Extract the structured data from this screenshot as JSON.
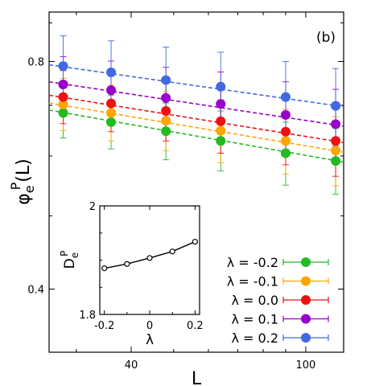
{
  "chart_data": [
    {
      "type": "scatter",
      "panel_label": "(b)",
      "xlabel": "L",
      "ylabel_main": "φ",
      "ylabel_sub": "e",
      "ylabel_sup": "P",
      "ylabel_suffix": "(L)",
      "x_scale": "log",
      "y_scale": "log",
      "xlim": [
        26,
        122
      ],
      "ylim": [
        0.33,
        0.93
      ],
      "x_ticks": [
        {
          "value": 40,
          "label": "40"
        },
        {
          "value": 100,
          "label": "100"
        }
      ],
      "y_ticks": [
        {
          "value": 0.8,
          "label": "0.8"
        },
        {
          "value": 0.4,
          "label": "0.4"
        }
      ],
      "x": [
        28,
        36,
        48,
        64,
        90,
        117
      ],
      "legend_position": "bottom-right",
      "series": [
        {
          "name": "λ = -0.2",
          "color": "#22bb22",
          "values": [
            0.684,
            0.665,
            0.647,
            0.628,
            0.605,
            0.591
          ],
          "err_plus": [
            0.055,
            0.057,
            0.058,
            0.06,
            0.06,
            0.062
          ],
          "err_minus": [
            0.05,
            0.052,
            0.054,
            0.055,
            0.056,
            0.057
          ],
          "fit": [
            0.69,
            0.589
          ]
        },
        {
          "name": "λ = -0.1",
          "color": "#ffa500",
          "values": [
            0.702,
            0.684,
            0.668,
            0.648,
            0.628,
            0.61
          ],
          "err_plus": [
            0.058,
            0.06,
            0.062,
            0.064,
            0.064,
            0.066
          ],
          "err_minus": [
            0.054,
            0.056,
            0.058,
            0.06,
            0.06,
            0.062
          ],
          "fit": [
            0.705,
            0.607
          ]
        },
        {
          "name": "λ = 0.0",
          "color": "#ee1111",
          "values": [
            0.718,
            0.704,
            0.688,
            0.667,
            0.646,
            0.628
          ],
          "err_plus": [
            0.06,
            0.062,
            0.064,
            0.066,
            0.066,
            0.068
          ],
          "err_minus": [
            0.056,
            0.058,
            0.06,
            0.062,
            0.062,
            0.064
          ],
          "fit": [
            0.722,
            0.625
          ]
        },
        {
          "name": "λ = 0.1",
          "color": "#9900cc",
          "values": [
            0.746,
            0.733,
            0.716,
            0.703,
            0.68,
            0.661
          ],
          "err_plus": [
            0.066,
            0.068,
            0.07,
            0.072,
            0.072,
            0.074
          ],
          "err_minus": [
            0.062,
            0.064,
            0.066,
            0.068,
            0.068,
            0.07
          ],
          "fit": [
            0.752,
            0.657
          ]
        },
        {
          "name": "λ = 0.2",
          "color": "#4169e1",
          "values": [
            0.789,
            0.774,
            0.756,
            0.741,
            0.718,
            0.699
          ],
          "err_plus": [
            0.076,
            0.078,
            0.08,
            0.082,
            0.082,
            0.084
          ],
          "err_minus": [
            0.072,
            0.074,
            0.076,
            0.078,
            0.078,
            0.08
          ],
          "fit": [
            0.792,
            0.697
          ]
        }
      ]
    },
    {
      "type": "line",
      "panel": "inset",
      "xlabel": "λ",
      "ylabel_main": "D",
      "ylabel_sub": "e",
      "ylabel_sup": "P",
      "xlim": [
        -0.22,
        0.22
      ],
      "ylim": [
        1.8,
        2.0
      ],
      "x_ticks": [
        {
          "value": -0.2,
          "label": "-0.2"
        },
        {
          "value": 0,
          "label": "0"
        },
        {
          "value": 0.2,
          "label": "0.2"
        }
      ],
      "y_ticks": [
        {
          "value": 2.0,
          "label": "2"
        },
        {
          "value": 1.8,
          "label": "1.8"
        }
      ],
      "x": [
        -0.2,
        -0.1,
        0.0,
        0.1,
        0.2
      ],
      "values": [
        1.885,
        1.893,
        1.904,
        1.916,
        1.934
      ],
      "color": "#000000"
    }
  ]
}
